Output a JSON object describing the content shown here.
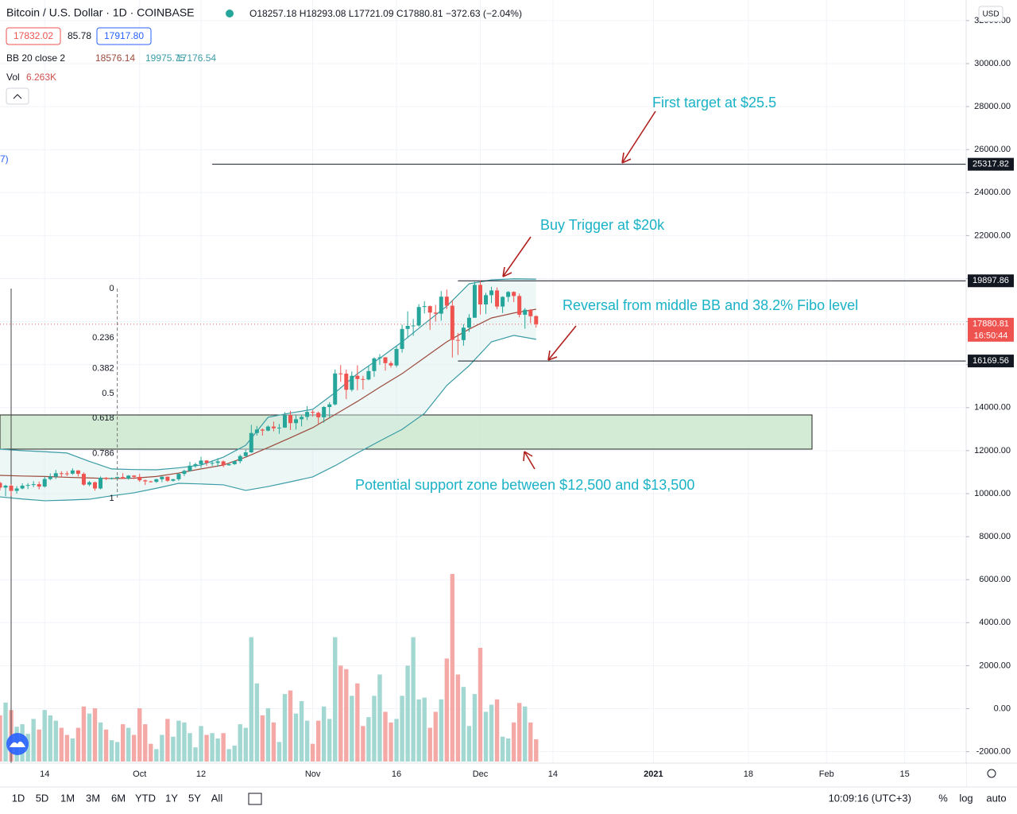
{
  "header": {
    "title": "Bitcoin / U.S. Dollar · 1D · COINBASE",
    "ohlc": "O18257.18 H18293.08 L17721.09 C17880.81 −372.63 (−2.04%)",
    "bid": "17832.02",
    "spread": "85.78",
    "ask": "17917.80",
    "bb_name": "BB 20 close 2",
    "bb_basis": "18576.14",
    "bb_upper": "19975.75",
    "bb_lower": "17176.54",
    "vol_name": "Vol",
    "vol_value": "6.263K",
    "cut_label": "7)",
    "currency": "USD"
  },
  "toolbar": {
    "ranges": [
      "1D",
      "5D",
      "1M",
      "3M",
      "6M",
      "YTD",
      "1Y",
      "5Y",
      "All"
    ],
    "clock": "10:09:16 (UTC+3)",
    "percent": "%",
    "log": "log",
    "auto": "auto"
  },
  "chart_data": {
    "type": "candlestick",
    "xlim": [
      0,
      173
    ],
    "ylim": [
      -2532,
      32957
    ],
    "volume_ylim": [
      0,
      53700
    ],
    "grid": true,
    "up_color": "#26a69a",
    "down_color": "#ef5350",
    "volume_up_color": "#a3d7d1",
    "volume_down_color": "#f4a9a7",
    "xticks": [
      {
        "value": 8,
        "label": "14"
      },
      {
        "value": 25,
        "label": "Oct"
      },
      {
        "value": 36,
        "label": "12"
      },
      {
        "value": 56,
        "label": "Nov"
      },
      {
        "value": 71,
        "label": "16"
      },
      {
        "value": 86,
        "label": "Dec"
      },
      {
        "value": 99,
        "label": "14"
      },
      {
        "value": 117,
        "label": "2021"
      },
      {
        "value": 134,
        "label": "18"
      },
      {
        "value": 148,
        "label": "Feb"
      },
      {
        "value": 162,
        "label": "15"
      }
    ],
    "yticks": [
      {
        "value": 32000,
        "label": "32000.00"
      },
      {
        "value": 30000,
        "label": "30000.00"
      },
      {
        "value": 28000,
        "label": "28000.00"
      },
      {
        "value": 26000,
        "label": "26000.00"
      },
      {
        "value": 24000,
        "label": "24000.00"
      },
      {
        "value": 22000,
        "label": "22000.00"
      },
      {
        "value": 20000,
        "label": "20000.00"
      },
      {
        "value": 18000,
        "label": "18000.00"
      },
      {
        "value": 16000,
        "label": "16000.00"
      },
      {
        "value": 14000,
        "label": "14000.00"
      },
      {
        "value": 12000,
        "label": "12000.00"
      },
      {
        "value": 10000,
        "label": "10000.00"
      },
      {
        "value": 8000,
        "label": "8000.00"
      },
      {
        "value": 6000,
        "label": "6000.00"
      },
      {
        "value": 4000,
        "label": "4000.00"
      },
      {
        "value": 2000,
        "label": "2000.00"
      },
      {
        "value": 0,
        "label": "0.00"
      },
      {
        "value": -2000,
        "label": "-2000.00"
      }
    ],
    "candles": [
      [
        10500,
        10560,
        10150,
        10280
      ],
      [
        10280,
        10420,
        9880,
        10370
      ],
      [
        10370,
        10440,
        9900,
        10130
      ],
      [
        10130,
        10350,
        10000,
        10240
      ],
      [
        10240,
        10480,
        10200,
        10370
      ],
      [
        10370,
        10490,
        10210,
        10400
      ],
      [
        10400,
        10580,
        10300,
        10440
      ],
      [
        10440,
        10560,
        10200,
        10330
      ],
      [
        10330,
        10800,
        10280,
        10680
      ],
      [
        10680,
        10940,
        10620,
        10790
      ],
      [
        10790,
        11100,
        10680,
        10950
      ],
      [
        10950,
        11040,
        10760,
        10940
      ],
      [
        10940,
        11050,
        10820,
        10930
      ],
      [
        10930,
        11180,
        10880,
        11080
      ],
      [
        11080,
        11090,
        10800,
        10920
      ],
      [
        10920,
        10990,
        10370,
        10420
      ],
      [
        10420,
        10590,
        10350,
        10530
      ],
      [
        10530,
        10560,
        10140,
        10240
      ],
      [
        10240,
        10800,
        10200,
        10740
      ],
      [
        10740,
        10770,
        10630,
        10690
      ],
      [
        10690,
        10750,
        10660,
        10730
      ],
      [
        10730,
        10800,
        10660,
        10770
      ],
      [
        10770,
        10950,
        10680,
        10700
      ],
      [
        10700,
        10860,
        10650,
        10840
      ],
      [
        10840,
        10860,
        10680,
        10780
      ],
      [
        10780,
        10920,
        10550,
        10620
      ],
      [
        10620,
        10660,
        10400,
        10570
      ],
      [
        10570,
        10600,
        10520,
        10550
      ],
      [
        10550,
        10690,
        10500,
        10670
      ],
      [
        10670,
        10800,
        10530,
        10790
      ],
      [
        10790,
        10800,
        10550,
        10600
      ],
      [
        10600,
        10690,
        10560,
        10670
      ],
      [
        10670,
        10950,
        10600,
        10920
      ],
      [
        10920,
        11110,
        10820,
        11060
      ],
      [
        11060,
        11480,
        11020,
        11300
      ],
      [
        11300,
        11440,
        11210,
        11370
      ],
      [
        11370,
        11710,
        11200,
        11540
      ],
      [
        11540,
        11560,
        11290,
        11430
      ],
      [
        11430,
        11550,
        11290,
        11430
      ],
      [
        11430,
        11650,
        11250,
        11500
      ],
      [
        11500,
        11540,
        11230,
        11320
      ],
      [
        11320,
        11400,
        11300,
        11370
      ],
      [
        11370,
        11520,
        11340,
        11510
      ],
      [
        11510,
        11820,
        11410,
        11750
      ],
      [
        11750,
        12040,
        11700,
        11920
      ],
      [
        11920,
        13200,
        11900,
        12820
      ],
      [
        12820,
        13150,
        12700,
        12980
      ],
      [
        12980,
        13030,
        12700,
        12930
      ],
      [
        12930,
        13170,
        12900,
        13120
      ],
      [
        13120,
        13350,
        12900,
        13040
      ],
      [
        13040,
        13240,
        12780,
        13070
      ],
      [
        13070,
        13790,
        13060,
        13650
      ],
      [
        13650,
        13850,
        12960,
        13280
      ],
      [
        13280,
        13640,
        12980,
        13460
      ],
      [
        13460,
        13660,
        13130,
        13570
      ],
      [
        13570,
        14070,
        13420,
        13800
      ],
      [
        13800,
        13890,
        13580,
        13760
      ],
      [
        13760,
        13820,
        13250,
        13550
      ],
      [
        13550,
        14070,
        13300,
        14030
      ],
      [
        14030,
        14250,
        13540,
        14150
      ],
      [
        14150,
        15770,
        14100,
        15590
      ],
      [
        15590,
        15980,
        15200,
        15580
      ],
      [
        15580,
        15770,
        14400,
        14830
      ],
      [
        14830,
        15680,
        14750,
        15480
      ],
      [
        15480,
        15970,
        14810,
        15330
      ],
      [
        15330,
        15480,
        14840,
        15310
      ],
      [
        15310,
        15950,
        15270,
        15700
      ],
      [
        15700,
        16340,
        15430,
        16290
      ],
      [
        16290,
        16490,
        15990,
        16340
      ],
      [
        16340,
        16350,
        15720,
        16070
      ],
      [
        16070,
        16160,
        15860,
        15960
      ],
      [
        15960,
        16880,
        15870,
        16730
      ],
      [
        16730,
        17860,
        16560,
        17660
      ],
      [
        17660,
        18480,
        17230,
        17800
      ],
      [
        17800,
        18120,
        17340,
        17820
      ],
      [
        17820,
        18810,
        17760,
        18680
      ],
      [
        18680,
        18950,
        18380,
        18720
      ],
      [
        18720,
        18750,
        17620,
        18420
      ],
      [
        18420,
        18780,
        18000,
        18370
      ],
      [
        18370,
        19420,
        18040,
        19160
      ],
      [
        19160,
        19490,
        18580,
        18740
      ],
      [
        18740,
        19000,
        16330,
        17150
      ],
      [
        17150,
        17470,
        16450,
        17140
      ],
      [
        17140,
        17880,
        16880,
        17720
      ],
      [
        17720,
        18350,
        17520,
        18180
      ],
      [
        18180,
        19860,
        18180,
        19710
      ],
      [
        19710,
        19920,
        18330,
        18800
      ],
      [
        18800,
        19340,
        18360,
        19230
      ],
      [
        19230,
        19620,
        18860,
        19450
      ],
      [
        19450,
        19590,
        18580,
        18700
      ],
      [
        18700,
        19180,
        18400,
        19150
      ],
      [
        19150,
        19420,
        18920,
        19380
      ],
      [
        19380,
        19410,
        18910,
        19190
      ],
      [
        19190,
        19300,
        18200,
        18320
      ],
      [
        18320,
        18630,
        17670,
        18550
      ],
      [
        18550,
        18580,
        17930,
        18250
      ],
      [
        18257.18,
        18293.08,
        17721.09,
        17880.81
      ]
    ],
    "volume": [
      13000,
      16600,
      14500,
      9800,
      10500,
      7800,
      12000,
      9000,
      14500,
      13000,
      11500,
      9500,
      7500,
      6500,
      9500,
      15500,
      13500,
      15000,
      11000,
      9000,
      6000,
      5500,
      10500,
      9500,
      7500,
      15000,
      10500,
      5000,
      3500,
      7500,
      12000,
      7000,
      11500,
      11000,
      8000,
      4000,
      10000,
      7500,
      8000,
      6500,
      8000,
      3500,
      4500,
      10500,
      9500,
      35000,
      22000,
      13000,
      15000,
      11000,
      5500,
      19000,
      20000,
      13500,
      17000,
      11500,
      5000,
      11500,
      15500,
      12000,
      35000,
      27000,
      26000,
      18500,
      22000,
      10000,
      12500,
      18500,
      24500,
      14000,
      11000,
      12000,
      18500,
      27000,
      35000,
      17500,
      18000,
      9500,
      14000,
      17500,
      29000,
      52800,
      24500,
      21000,
      10000,
      19000,
      32000,
      14000,
      16000,
      17500,
      7000,
      6500,
      11000,
      16500,
      15500,
      11000,
      6263
    ],
    "bb": {
      "x": [
        0,
        4,
        8,
        12,
        16,
        20,
        24,
        28,
        32,
        36,
        40,
        44,
        48,
        52,
        56,
        60,
        64,
        68,
        72,
        76,
        80,
        84,
        88,
        92,
        96
      ],
      "upper": [
        12070,
        12000,
        11950,
        11890,
        11500,
        11150,
        11120,
        11110,
        11200,
        11330,
        11700,
        12250,
        13550,
        13750,
        13920,
        14700,
        15580,
        16300,
        17060,
        17900,
        18720,
        19760,
        19940,
        19990,
        19975.75
      ],
      "middle": [
        10850,
        10820,
        10800,
        10760,
        10730,
        10700,
        10720,
        10800,
        10960,
        11150,
        11330,
        11700,
        12140,
        12600,
        13070,
        13680,
        14290,
        14950,
        15580,
        16320,
        17060,
        17650,
        18170,
        18400,
        18576.14
      ],
      "lower": [
        9850,
        9750,
        9670,
        9700,
        9740,
        9900,
        10040,
        10250,
        10480,
        10450,
        10410,
        10150,
        10330,
        10550,
        10780,
        11300,
        11890,
        12450,
        12990,
        13730,
        15030,
        15950,
        17060,
        17360,
        17176.54
      ],
      "upper_color": "#3a9ca6",
      "middle_color": "#9c4a3c"
    },
    "fib": {
      "x": 21,
      "high": 19540,
      "low": 9780,
      "levels": [
        0,
        0.236,
        0.382,
        0.5,
        0.618,
        0.786,
        1
      ]
    },
    "levels": [
      {
        "price": 25317.82,
        "from": 38
      },
      {
        "price": 19897.86,
        "from": 82
      },
      {
        "price": 16169.56,
        "from": 82
      }
    ],
    "last": {
      "price": 17880.81,
      "countdown": "16:50:44"
    },
    "zone": {
      "from": 0,
      "to": 145.4,
      "low": 12070,
      "high": 13660
    },
    "annotations": [
      "First target at $25.5",
      "Buy Trigger at $20k",
      "Reversal from middle BB and 38.2% Fibo level",
      "Potential support zone between $12,500 and $13,500"
    ]
  }
}
